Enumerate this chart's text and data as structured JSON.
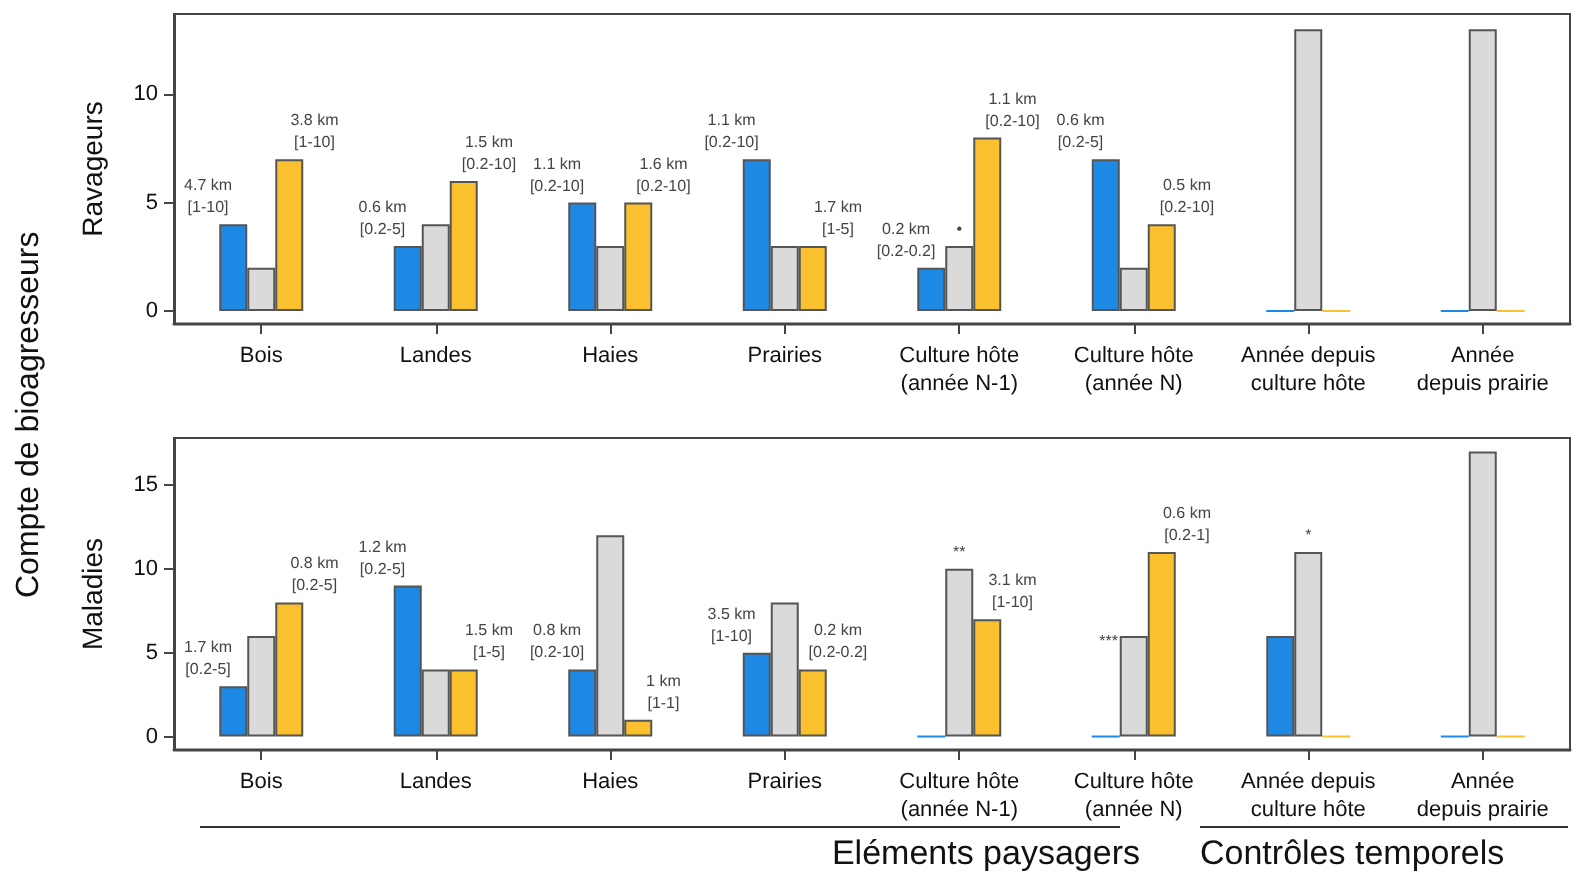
{
  "chart_data": [
    {
      "type": "bar",
      "ylabel": "Ravageurs",
      "categories": [
        "Bois",
        "Landes",
        "Haies",
        "Prairies",
        "Culture hôte\n(année N-1)",
        "Culture hôte\n(année N)",
        "Année depuis\nculture hôte",
        "Année\ndepuis prairie"
      ],
      "series": [
        {
          "color": "#1e88e5",
          "values": [
            4,
            3,
            5,
            7,
            2,
            7,
            0,
            0
          ]
        },
        {
          "color": "#dadada",
          "values": [
            2,
            4,
            3,
            3,
            3,
            2,
            13,
            13
          ]
        },
        {
          "color": "#fbc02d",
          "values": [
            7,
            6,
            5,
            3,
            8,
            4,
            0,
            0
          ]
        }
      ],
      "annotations": [
        "Compte de bioagresseurs",
        "4.7 km\n[1-10]",
        "3.8 km\n[1-10]",
        "0.6 km\n[0.2-5]",
        "1.5 km\n[0.2-10]",
        "1.1 km\n[0.2-10]",
        "1.6 km\n[0.2-10]",
        "1.1 km\n[0.2-10]",
        "1.7 km\n[1-5]",
        "0.2 km\n[0.2-0.2]",
        "•",
        "1.1 km\n[0.2-10]",
        "0.6 km\n[0.2-5]",
        "0.5 km\n[0.2-10]"
      ],
      "ylim": [
        -0.6,
        13.7
      ],
      "yticks": [
        0,
        5,
        10
      ],
      "grid": false
    },
    {
      "type": "bar",
      "ylabel": "Maladies",
      "categories": [
        "Bois",
        "Landes",
        "Haies",
        "Prairies",
        "Culture hôte\n(année N-1)",
        "Culture hôte\n(année N)",
        "Année depuis\nculture hôte",
        "Année\ndepuis prairie"
      ],
      "series": [
        {
          "color": "#1e88e5",
          "values": [
            3,
            9,
            4,
            5,
            0,
            0,
            6,
            0
          ]
        },
        {
          "color": "#dadada",
          "values": [
            6,
            4,
            12,
            8,
            10,
            6,
            11,
            17
          ]
        },
        {
          "color": "#fbc02d",
          "values": [
            8,
            4,
            1,
            4,
            7,
            11,
            0,
            0
          ]
        }
      ],
      "annotations": [
        "Eléments paysagers",
        "Contrôles temporels",
        "1.7 km\n[0.2-5]",
        "0.8 km\n[0.2-5]",
        "1.2 km\n[0.2-5]",
        "1.5 km\n[1-5]",
        "0.8 km\n[0.2-10]",
        "1 km\n[1-1]",
        "3.5 km\n[1-10]",
        "0.2 km\n[0.2-0.2]",
        "**",
        "3.1 km\n[1-10]",
        "***",
        "0.6 km\n[0.2-1]",
        "*"
      ],
      "ylim": [
        -0.8,
        17.8
      ],
      "yticks": [
        0,
        5,
        10,
        15
      ],
      "grid": false
    }
  ]
}
